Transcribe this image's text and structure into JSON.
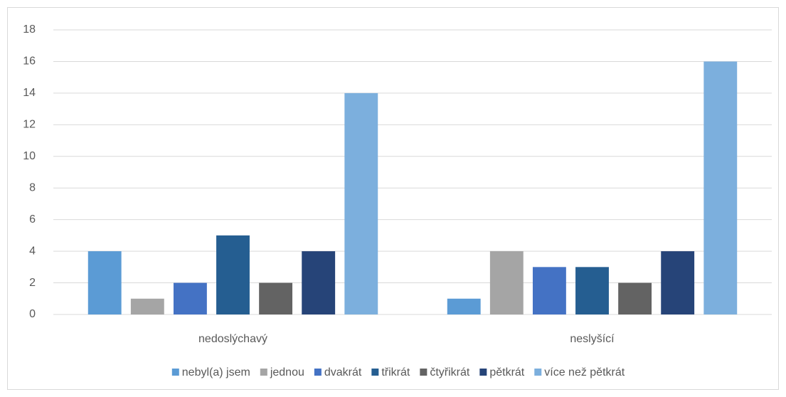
{
  "chart_data": {
    "type": "bar",
    "categories": [
      "nedoslýchavý",
      "neslyšící"
    ],
    "series": [
      {
        "name": "nebyl(a) jsem",
        "color": "#5b9bd5",
        "values": [
          4,
          1
        ]
      },
      {
        "name": "jednou",
        "color": "#a5a5a5",
        "values": [
          1,
          4
        ]
      },
      {
        "name": "dvakrát",
        "color": "#4472c4",
        "values": [
          2,
          3
        ]
      },
      {
        "name": "třikrát",
        "color": "#255e91",
        "values": [
          5,
          3
        ]
      },
      {
        "name": "čtyřikrát",
        "color": "#636363",
        "values": [
          2,
          2
        ]
      },
      {
        "name": "pětkrát",
        "color": "#264478",
        "values": [
          4,
          4
        ]
      },
      {
        "name": "více než pětkrát",
        "color": "#7cafdd",
        "values": [
          14,
          16
        ]
      }
    ],
    "ylim": [
      0,
      18
    ],
    "yticks": [
      0,
      2,
      4,
      6,
      8,
      10,
      12,
      14,
      16,
      18
    ],
    "grid": true,
    "legend": "bottom"
  }
}
